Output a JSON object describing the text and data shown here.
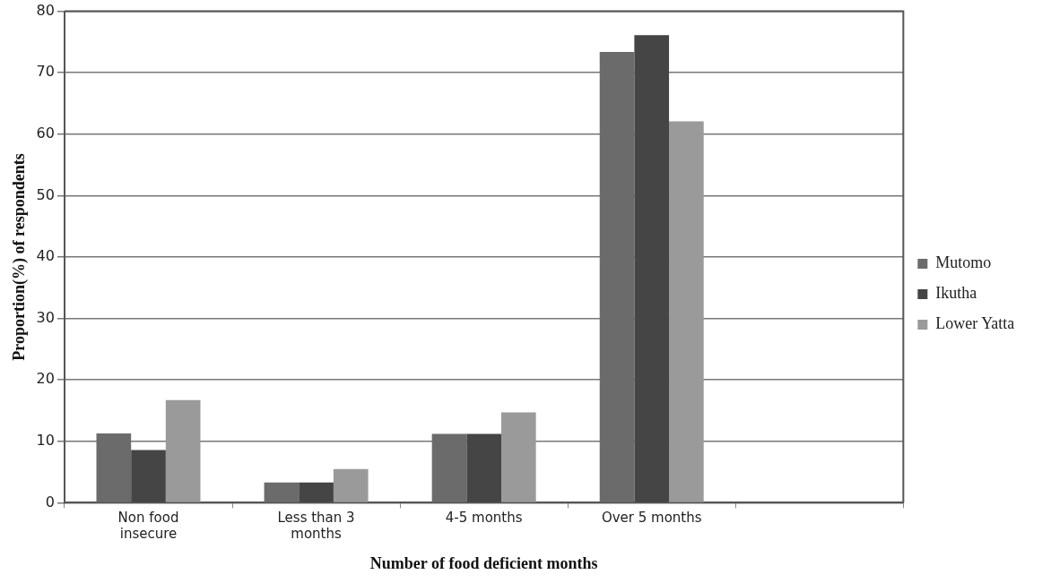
{
  "chart_data": {
    "type": "bar",
    "xlabel": "Number of food deficient months",
    "ylabel": "Proportion(%) of respondents",
    "categories": [
      "Non food\ninsecure",
      "Less than 3\nmonths",
      "4-5 months",
      "Over 5 months",
      null
    ],
    "series": [
      {
        "name": "Mutomo",
        "color": "#6b6b6b",
        "values": [
          11.3,
          3.3,
          11.2,
          73.4,
          null
        ]
      },
      {
        "name": "Ikutha",
        "color": "#454545",
        "values": [
          8.6,
          3.3,
          11.2,
          76.1,
          null
        ]
      },
      {
        "name": "Lower Yatta",
        "color": "#9a9a9a",
        "values": [
          16.7,
          5.5,
          14.7,
          62.1,
          null
        ]
      }
    ],
    "ylim": [
      0,
      80
    ],
    "yticks": [
      0,
      10,
      20,
      30,
      40,
      50,
      60,
      70,
      80
    ],
    "grid": "y",
    "legend": "right"
  }
}
